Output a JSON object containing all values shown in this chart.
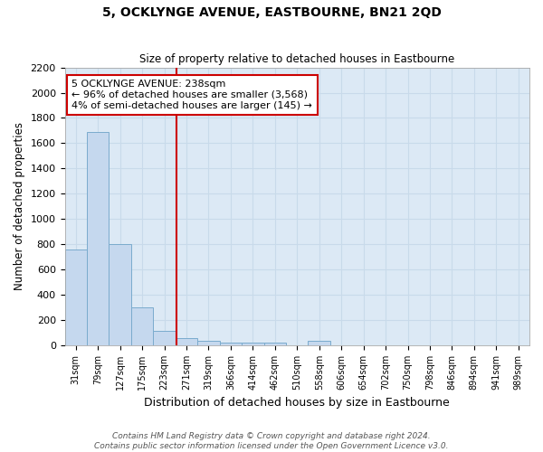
{
  "title": "5, OCKLYNGE AVENUE, EASTBOURNE, BN21 2QD",
  "subtitle": "Size of property relative to detached houses in Eastbourne",
  "xlabel": "Distribution of detached houses by size in Eastbourne",
  "ylabel": "Number of detached properties",
  "footnote1": "Contains HM Land Registry data © Crown copyright and database right 2024.",
  "footnote2": "Contains public sector information licensed under the Open Government Licence v3.0.",
  "categories": [
    "31sqm",
    "79sqm",
    "127sqm",
    "175sqm",
    "223sqm",
    "271sqm",
    "319sqm",
    "366sqm",
    "414sqm",
    "462sqm",
    "510sqm",
    "558sqm",
    "606sqm",
    "654sqm",
    "702sqm",
    "750sqm",
    "798sqm",
    "846sqm",
    "894sqm",
    "941sqm",
    "989sqm"
  ],
  "values": [
    760,
    1690,
    800,
    300,
    115,
    55,
    35,
    25,
    25,
    25,
    0,
    35,
    0,
    0,
    0,
    0,
    0,
    0,
    0,
    0,
    0
  ],
  "bar_color": "#c5d8ee",
  "bar_edge_color": "#7aabcd",
  "grid_color": "#c8daea",
  "bg_color": "#dce9f5",
  "red_line_x": 4.55,
  "red_line_color": "#cc0000",
  "annotation_text": "5 OCKLYNGE AVENUE: 238sqm\n← 96% of detached houses are smaller (3,568)\n4% of semi-detached houses are larger (145) →",
  "annotation_box_color": "#ffffff",
  "annotation_box_edge": "#cc0000",
  "ylim": [
    0,
    2200
  ],
  "yticks": [
    0,
    200,
    400,
    600,
    800,
    1000,
    1200,
    1400,
    1600,
    1800,
    2000,
    2200
  ]
}
